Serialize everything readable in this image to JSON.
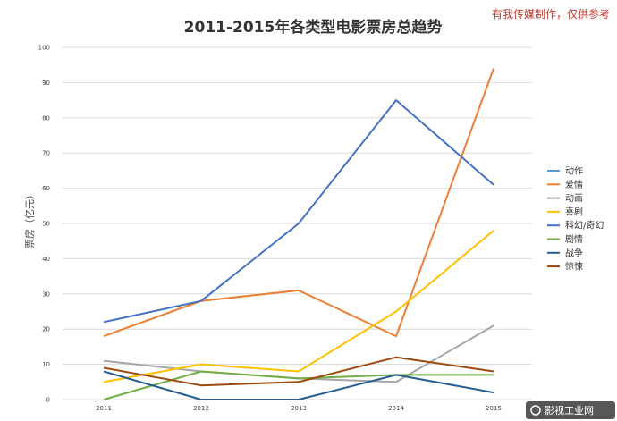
{
  "watermark_top": "有我传媒制作，仅供参考",
  "watermark_bottom": "影视工业网",
  "chart_data": {
    "type": "line",
    "title": "2011-2015年各类型电影票房总趋势",
    "ylabel": "票房（亿元）",
    "xlabel": "",
    "x": [
      "2011",
      "2012",
      "2013",
      "2014",
      "2015"
    ],
    "ylim": [
      0,
      100
    ],
    "yticks": [
      0,
      10,
      20,
      30,
      40,
      50,
      60,
      70,
      80,
      90,
      100
    ],
    "grid": "horizontal",
    "legend_position": "right",
    "series": [
      {
        "name": "动作",
        "color": "#5b9bd5",
        "values": [
          null,
          null,
          null,
          null,
          null
        ]
      },
      {
        "name": "爱情",
        "color": "#ed7d31",
        "values": [
          18,
          28,
          31,
          18,
          94
        ]
      },
      {
        "name": "动画",
        "color": "#a5a5a5",
        "values": [
          11,
          8,
          6,
          5,
          21
        ]
      },
      {
        "name": "喜剧",
        "color": "#ffc000",
        "values": [
          5,
          10,
          8,
          25,
          48
        ]
      },
      {
        "name": "科幻/奇幻",
        "color": "#4472c4",
        "values": [
          22,
          28,
          50,
          85,
          61
        ]
      },
      {
        "name": "剧情",
        "color": "#70ad47",
        "values": [
          0,
          8,
          6,
          7,
          7
        ]
      },
      {
        "name": "战争",
        "color": "#255e91",
        "values": [
          8,
          0,
          0,
          7,
          2
        ]
      },
      {
        "name": "惊悚",
        "color": "#9e480e",
        "values": [
          9,
          4,
          5,
          12,
          8
        ]
      }
    ]
  }
}
